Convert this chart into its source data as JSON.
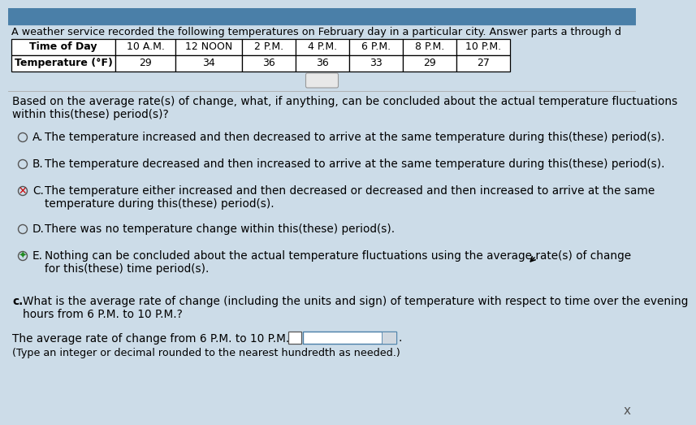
{
  "title": "A weather service recorded the following temperatures on February day in a particular city. Answer parts a through d",
  "table_headers": [
    "Time of Day",
    "10 A.M.",
    "12 NOON",
    "2 P.M.",
    "4 P.M.",
    "6 P.M.",
    "8 P.M.",
    "10 P.M."
  ],
  "table_row_label": "Temperature (°F)",
  "table_values": [
    "29",
    "34",
    "36",
    "36",
    "33",
    "29",
    "27"
  ],
  "ellipsis": "···",
  "question_text": "Based on the average rate(s) of change, what, if anything, can be concluded about the actual temperature fluctuations\nwithin this(these) period(s)?",
  "options": [
    {
      "label": "A.",
      "text": "The temperature increased and then decreased to arrive at the same temperature during this(these) period(s).",
      "selected": false,
      "marked": false
    },
    {
      "label": "B.",
      "text": "The temperature decreased and then increased to arrive at the same temperature during this(these) period(s).",
      "selected": false,
      "marked": false
    },
    {
      "label": "C.",
      "text": "The temperature either increased and then decreased or decreased and then increased to arrive at the same\ntemperature during this(these) period(s).",
      "selected": true,
      "marked": true
    },
    {
      "label": "D.",
      "text": "There was no temperature change within this(these) period(s).",
      "selected": false,
      "marked": false
    },
    {
      "label": "E.",
      "text": "Nothing can be concluded about the actual temperature fluctuations using the average rate(s) of change\nfor this(these) time period(s).",
      "selected": true,
      "marked": true
    }
  ],
  "part_c_bold": "c.",
  "part_c_text": "What is the average rate of change (including the units and sign) of temperature with respect to time over the evening\nhours from 6 P.M. to 10 P.M.?",
  "answer_text": "The average rate of change from 6 P.M. to 10 P.M. is",
  "answer_note": "(Type an integer or decimal rounded to the nearest hundredth as needed.)",
  "x_label": "x",
  "bg_color": "#ccdce8",
  "white": "#ffffff",
  "black": "#000000",
  "gray": "#888888",
  "red": "#cc0000",
  "green": "#228B22",
  "light_gray": "#e0e0e0",
  "dark_gray": "#555555",
  "title_fontsize": 9.2,
  "table_fontsize": 9.0,
  "body_fontsize": 9.8,
  "small_fontsize": 9.2
}
